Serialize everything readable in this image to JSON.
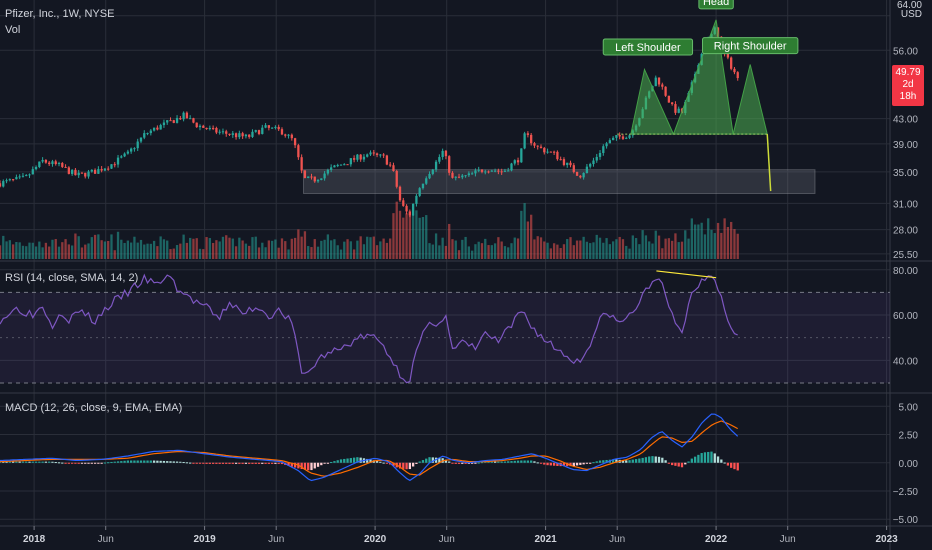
{
  "header": {
    "symbol_line": "Pfizer, Inc., 1W, NYSE",
    "vol_label": "Vol",
    "currency_tick": "64.00",
    "currency": "USD"
  },
  "last_price": {
    "value": "49.79",
    "countdown": "2d 18h",
    "color": "#f23645"
  },
  "annotations": {
    "left_shoulder": "Left Shoulder",
    "head": "Head",
    "right_shoulder": "Right Shoulder"
  },
  "colors": {
    "background": "#131722",
    "up": "#26a69a",
    "down": "#ef5350",
    "pattern_fill": "#4caf50",
    "target_zone": "#787b86",
    "rsi_line": "#7e57c2",
    "rsi_band": "#7e57c2",
    "macd_line": "#2962ff",
    "signal_line": "#ff6d00",
    "divergence": "#ffeb3b"
  },
  "chart_data": [
    {
      "type": "candlestick",
      "title": "Pfizer, Inc., 1W, NYSE",
      "ylabel": "USD",
      "yticks": [
        25.5,
        28.0,
        31.0,
        35.0,
        39.0,
        43.0,
        49.79,
        56.0,
        64.0
      ],
      "ytick_labels": [
        "25.50",
        "28.00",
        "31.00",
        "35.00",
        "39.00",
        "43.00",
        "49.79",
        "56.00",
        "64.00"
      ],
      "xticks": [
        "2018",
        "Jun",
        "2019",
        "Jun",
        "2020",
        "Jun",
        "2021",
        "Jun",
        "2022",
        "Jun",
        "2023"
      ],
      "x_positions": [
        2018.0,
        2018.42,
        2019.0,
        2019.42,
        2020.0,
        2020.42,
        2021.0,
        2021.42,
        2022.0,
        2022.42,
        2023.0
      ],
      "x_range": [
        2017.8,
        2023.02
      ],
      "ylim": [
        25.0,
        68.0
      ],
      "log_scale": true,
      "grid": true,
      "path_points": [
        [
          2017.8,
          33.5
        ],
        [
          2017.95,
          34.2
        ],
        [
          2018.05,
          36.5
        ],
        [
          2018.15,
          35.8
        ],
        [
          2018.25,
          34.5
        ],
        [
          2018.35,
          35.0
        ],
        [
          2018.45,
          36.0
        ],
        [
          2018.55,
          37.5
        ],
        [
          2018.65,
          40.5
        ],
        [
          2018.72,
          41.5
        ],
        [
          2018.8,
          42.5
        ],
        [
          2018.88,
          43.5
        ],
        [
          2018.95,
          42.0
        ],
        [
          2019.05,
          41.0
        ],
        [
          2019.15,
          40.5
        ],
        [
          2019.25,
          40.0
        ],
        [
          2019.35,
          41.5
        ],
        [
          2019.45,
          41.0
        ],
        [
          2019.52,
          39.5
        ],
        [
          2019.58,
          34.0
        ],
        [
          2019.65,
          34.0
        ],
        [
          2019.75,
          35.5
        ],
        [
          2019.85,
          36.5
        ],
        [
          2019.95,
          37.5
        ],
        [
          2020.05,
          37.0
        ],
        [
          2020.1,
          35.5
        ],
        [
          2020.15,
          31.0
        ],
        [
          2020.2,
          29.5
        ],
        [
          2020.25,
          32.5
        ],
        [
          2020.3,
          34.5
        ],
        [
          2020.35,
          36.0
        ],
        [
          2020.4,
          38.0
        ],
        [
          2020.45,
          34.0
        ],
        [
          2020.55,
          34.5
        ],
        [
          2020.65,
          35.5
        ],
        [
          2020.75,
          35.0
        ],
        [
          2020.85,
          37.0
        ],
        [
          2020.88,
          40.5
        ],
        [
          2020.95,
          38.5
        ],
        [
          2021.05,
          37.5
        ],
        [
          2021.15,
          35.5
        ],
        [
          2021.2,
          34.5
        ],
        [
          2021.28,
          36.5
        ],
        [
          2021.35,
          39.0
        ],
        [
          2021.42,
          40.0
        ],
        [
          2021.5,
          40.5
        ],
        [
          2021.55,
          43.5
        ],
        [
          2021.6,
          47.0
        ],
        [
          2021.65,
          50.5
        ],
        [
          2021.7,
          47.5
        ],
        [
          2021.75,
          44.5
        ],
        [
          2021.8,
          44.0
        ],
        [
          2021.85,
          48.0
        ],
        [
          2021.9,
          54.0
        ],
        [
          2021.95,
          58.0
        ],
        [
          2022.0,
          61.0
        ],
        [
          2022.05,
          55.0
        ],
        [
          2022.1,
          52.0
        ],
        [
          2022.13,
          49.79
        ]
      ]
    },
    {
      "type": "bar",
      "title": "Vol",
      "description": "weekly volume histogram colored by candle direction"
    },
    {
      "type": "line",
      "title": "RSI (14, close, SMA, 14, 2)",
      "yticks": [
        40.0,
        60.0,
        80.0
      ],
      "ytick_labels": [
        "40.00",
        "60.00",
        "80.00"
      ],
      "ylim": [
        26,
        83
      ],
      "band": [
        30,
        70
      ],
      "series": [
        {
          "name": "RSI",
          "points": [
            [
              2017.8,
              58
            ],
            [
              2017.9,
              63
            ],
            [
              2018.0,
              60
            ],
            [
              2018.05,
              65
            ],
            [
              2018.1,
              55
            ],
            [
              2018.15,
              62
            ],
            [
              2018.2,
              58
            ],
            [
              2018.28,
              62
            ],
            [
              2018.35,
              57
            ],
            [
              2018.45,
              65
            ],
            [
              2018.55,
              70
            ],
            [
              2018.65,
              76
            ],
            [
              2018.72,
              73
            ],
            [
              2018.78,
              78
            ],
            [
              2018.85,
              71
            ],
            [
              2018.92,
              67
            ],
            [
              2019.0,
              64
            ],
            [
              2019.08,
              58
            ],
            [
              2019.15,
              66
            ],
            [
              2019.22,
              60
            ],
            [
              2019.3,
              64
            ],
            [
              2019.38,
              60
            ],
            [
              2019.45,
              62
            ],
            [
              2019.52,
              55
            ],
            [
              2019.56,
              37
            ],
            [
              2019.6,
              33
            ],
            [
              2019.66,
              40
            ],
            [
              2019.72,
              43
            ],
            [
              2019.8,
              45
            ],
            [
              2019.88,
              49
            ],
            [
              2019.95,
              51
            ],
            [
              2020.02,
              49
            ],
            [
              2020.08,
              43
            ],
            [
              2020.12,
              37
            ],
            [
              2020.16,
              33
            ],
            [
              2020.2,
              31
            ],
            [
              2020.25,
              46
            ],
            [
              2020.3,
              54
            ],
            [
              2020.36,
              57
            ],
            [
              2020.42,
              60
            ],
            [
              2020.45,
              44
            ],
            [
              2020.52,
              48
            ],
            [
              2020.58,
              45
            ],
            [
              2020.65,
              52
            ],
            [
              2020.72,
              48
            ],
            [
              2020.8,
              55
            ],
            [
              2020.86,
              62
            ],
            [
              2020.92,
              55
            ],
            [
              2020.98,
              50
            ],
            [
              2021.05,
              46
            ],
            [
              2021.12,
              42
            ],
            [
              2021.2,
              39
            ],
            [
              2021.25,
              46
            ],
            [
              2021.32,
              58
            ],
            [
              2021.38,
              61
            ],
            [
              2021.42,
              56
            ],
            [
              2021.5,
              60
            ],
            [
              2021.56,
              67
            ],
            [
              2021.62,
              74
            ],
            [
              2021.66,
              79
            ],
            [
              2021.7,
              68
            ],
            [
              2021.76,
              56
            ],
            [
              2021.8,
              53
            ],
            [
              2021.86,
              70
            ],
            [
              2021.92,
              76
            ],
            [
              2021.98,
              79
            ],
            [
              2022.02,
              71
            ],
            [
              2022.06,
              59
            ],
            [
              2022.1,
              54
            ],
            [
              2022.13,
              51
            ]
          ]
        }
      ],
      "divergence_line": [
        [
          2021.65,
          79.5
        ],
        [
          2022.0,
          76.5
        ]
      ]
    },
    {
      "type": "line",
      "title": "MACD (12, 26, close, 9, EMA, EMA)",
      "yticks": [
        -5.0,
        -2.5,
        0.0,
        2.5,
        5.0
      ],
      "ytick_labels": [
        "−5.00",
        "−2.50",
        "0.00",
        "2.50",
        "5.00"
      ],
      "ylim": [
        -5.6,
        6.0
      ],
      "series": [
        {
          "name": "MACD",
          "points": [
            [
              2017.8,
              0.2
            ],
            [
              2017.95,
              0.3
            ],
            [
              2018.1,
              0.4
            ],
            [
              2018.25,
              0.2
            ],
            [
              2018.4,
              0.3
            ],
            [
              2018.55,
              0.6
            ],
            [
              2018.7,
              1.0
            ],
            [
              2018.85,
              1.1
            ],
            [
              2019.0,
              0.8
            ],
            [
              2019.15,
              0.5
            ],
            [
              2019.3,
              0.3
            ],
            [
              2019.45,
              0.1
            ],
            [
              2019.55,
              -0.7
            ],
            [
              2019.62,
              -1.6
            ],
            [
              2019.7,
              -1.3
            ],
            [
              2019.8,
              -0.6
            ],
            [
              2019.9,
              0.1
            ],
            [
              2020.0,
              0.4
            ],
            [
              2020.08,
              0.1
            ],
            [
              2020.14,
              -0.8
            ],
            [
              2020.2,
              -1.6
            ],
            [
              2020.26,
              -1.0
            ],
            [
              2020.32,
              0.0
            ],
            [
              2020.4,
              0.6
            ],
            [
              2020.46,
              0.2
            ],
            [
              2020.55,
              0.0
            ],
            [
              2020.65,
              0.2
            ],
            [
              2020.75,
              0.3
            ],
            [
              2020.85,
              0.6
            ],
            [
              2020.92,
              0.8
            ],
            [
              2021.0,
              0.4
            ],
            [
              2021.08,
              -0.1
            ],
            [
              2021.16,
              -0.6
            ],
            [
              2021.24,
              -0.7
            ],
            [
              2021.32,
              -0.2
            ],
            [
              2021.4,
              0.3
            ],
            [
              2021.48,
              0.5
            ],
            [
              2021.56,
              1.2
            ],
            [
              2021.62,
              2.2
            ],
            [
              2021.68,
              2.8
            ],
            [
              2021.74,
              2.0
            ],
            [
              2021.8,
              1.4
            ],
            [
              2021.86,
              2.3
            ],
            [
              2021.92,
              3.6
            ],
            [
              2021.98,
              4.4
            ],
            [
              2022.03,
              4.0
            ],
            [
              2022.08,
              3.0
            ],
            [
              2022.13,
              2.3
            ]
          ]
        },
        {
          "name": "Signal",
          "points": [
            [
              2017.8,
              0.1
            ],
            [
              2017.95,
              0.2
            ],
            [
              2018.1,
              0.3
            ],
            [
              2018.25,
              0.3
            ],
            [
              2018.4,
              0.3
            ],
            [
              2018.55,
              0.4
            ],
            [
              2018.7,
              0.8
            ],
            [
              2018.85,
              1.0
            ],
            [
              2019.0,
              0.9
            ],
            [
              2019.15,
              0.6
            ],
            [
              2019.3,
              0.4
            ],
            [
              2019.45,
              0.2
            ],
            [
              2019.55,
              -0.2
            ],
            [
              2019.62,
              -0.9
            ],
            [
              2019.7,
              -1.2
            ],
            [
              2019.8,
              -0.9
            ],
            [
              2019.9,
              -0.4
            ],
            [
              2020.0,
              0.2
            ],
            [
              2020.08,
              0.2
            ],
            [
              2020.14,
              -0.3
            ],
            [
              2020.2,
              -1.0
            ],
            [
              2020.26,
              -1.1
            ],
            [
              2020.32,
              -0.5
            ],
            [
              2020.4,
              0.2
            ],
            [
              2020.46,
              0.3
            ],
            [
              2020.55,
              0.1
            ],
            [
              2020.65,
              0.1
            ],
            [
              2020.75,
              0.2
            ],
            [
              2020.85,
              0.4
            ],
            [
              2020.92,
              0.6
            ],
            [
              2021.0,
              0.6
            ],
            [
              2021.08,
              0.2
            ],
            [
              2021.16,
              -0.3
            ],
            [
              2021.24,
              -0.6
            ],
            [
              2021.32,
              -0.4
            ],
            [
              2021.4,
              0.0
            ],
            [
              2021.48,
              0.3
            ],
            [
              2021.56,
              0.8
            ],
            [
              2021.62,
              1.6
            ],
            [
              2021.68,
              2.3
            ],
            [
              2021.74,
              2.2
            ],
            [
              2021.8,
              1.8
            ],
            [
              2021.86,
              1.9
            ],
            [
              2021.92,
              2.7
            ],
            [
              2021.98,
              3.4
            ],
            [
              2022.03,
              3.7
            ],
            [
              2022.08,
              3.4
            ],
            [
              2022.13,
              3.0
            ]
          ]
        }
      ]
    }
  ],
  "pattern": {
    "left_shoulder": [
      [
        2021.5,
        40.5
      ],
      [
        2021.58,
        52
      ],
      [
        2021.75,
        40.5
      ]
    ],
    "head": [
      [
        2021.75,
        40.5
      ],
      [
        2022.0,
        63
      ],
      [
        2022.1,
        40.5
      ]
    ],
    "right_shoulder": [
      [
        2022.1,
        40.5
      ],
      [
        2022.2,
        53
      ],
      [
        2022.3,
        40.5
      ]
    ],
    "neckline": [
      [
        2021.42,
        40.5
      ],
      [
        2022.3,
        40.5
      ]
    ],
    "projection": [
      [
        2022.3,
        40.5
      ],
      [
        2022.32,
        32.5
      ]
    ],
    "target_zone": {
      "x": [
        2019.58,
        2022.58
      ],
      "y": [
        32.2,
        35.3
      ]
    }
  }
}
